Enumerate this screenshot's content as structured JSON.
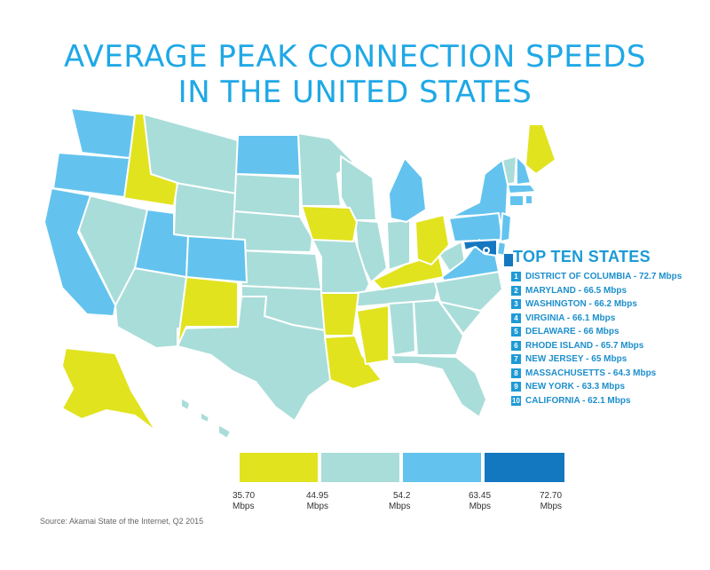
{
  "title": {
    "line1": "AVERAGE PEAK CONNECTION SPEEDS",
    "line2": "IN THE UNITED STATES"
  },
  "colors": {
    "tier1": "#e1e31f",
    "tier2": "#a9ddd9",
    "tier3": "#63c3ee",
    "tier4": "#1478c1",
    "accent": "#1d9ad6"
  },
  "top_ten": {
    "heading": "TOP TEN STATES",
    "items": [
      {
        "rank": "1",
        "text": "DISTRICT OF COLUMBIA - 72.7 Mbps"
      },
      {
        "rank": "2",
        "text": "MARYLAND - 66.5 Mbps"
      },
      {
        "rank": "3",
        "text": "WASHINGTON - 66.2 Mbps"
      },
      {
        "rank": "4",
        "text": "VIRGINIA - 66.1 Mbps"
      },
      {
        "rank": "5",
        "text": "DELAWARE - 66 Mbps"
      },
      {
        "rank": "6",
        "text": "RHODE ISLAND - 65.7 Mbps"
      },
      {
        "rank": "7",
        "text": "NEW JERSEY - 65 Mbps"
      },
      {
        "rank": "8",
        "text": "MASSACHUSETTS - 64.3 Mbps"
      },
      {
        "rank": "9",
        "text": "NEW YORK - 63.3 Mbps"
      },
      {
        "rank": "10",
        "text": "CALIFORNIA - 62.1 Mbps"
      }
    ]
  },
  "legend": {
    "ticks": [
      {
        "value": "35.70",
        "unit": "Mbps"
      },
      {
        "value": "44.95",
        "unit": "Mbps"
      },
      {
        "value": "54.2",
        "unit": "Mbps"
      },
      {
        "value": "63.45",
        "unit": "Mbps"
      },
      {
        "value": "72.70",
        "unit": "Mbps"
      }
    ]
  },
  "source": "Source: Akamai State of the Internet, Q2 2015"
}
